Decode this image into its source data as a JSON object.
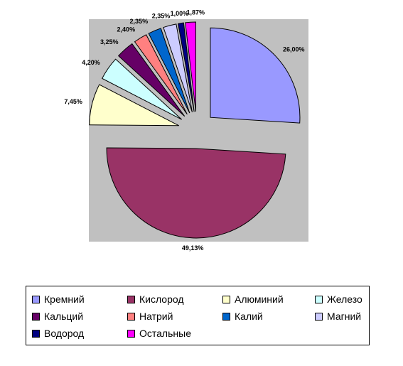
{
  "chart_data": {
    "type": "pie",
    "title": "",
    "categories": [
      "Кремний",
      "Кислород",
      "Алюминий",
      "Железо",
      "Кальций",
      "Натрий",
      "Калий",
      "Магний",
      "Водород",
      "Остальные"
    ],
    "values": [
      26.0,
      49.13,
      7.45,
      4.2,
      3.25,
      2.4,
      2.35,
      2.35,
      1.0,
      1.87
    ],
    "data_labels": [
      "26,00%",
      "49,13%",
      "7,45%",
      "4,20%",
      "3,25%",
      "2,40%",
      "2,35%",
      "2,35%",
      "1,00%",
      "1,87%"
    ],
    "colors": [
      "#9999ff",
      "#993366",
      "#ffffcc",
      "#ccffff",
      "#660066",
      "#ff8080",
      "#0066cc",
      "#ccccff",
      "#000080",
      "#ff00ff"
    ],
    "plot_area_color": "#c0c0c0",
    "exploded": true,
    "legend_position": "bottom"
  }
}
